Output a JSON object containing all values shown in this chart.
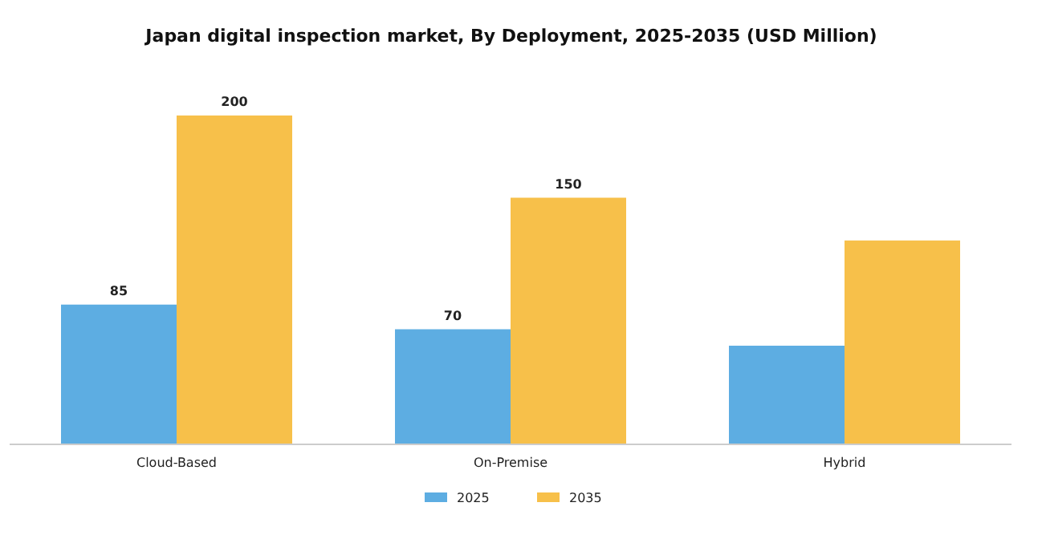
{
  "chart_data": {
    "type": "bar",
    "title": "Japan digital inspection market, By Deployment, 2025-2035 (USD Million)",
    "categories": [
      "Cloud-Based",
      "On-Premise",
      "Hybrid"
    ],
    "series": [
      {
        "name": "2025",
        "color": "#5dade2",
        "values": [
          85,
          70,
          60
        ],
        "value_labels": [
          "85",
          "70",
          null
        ]
      },
      {
        "name": "2035",
        "color": "#f7c04a",
        "values": [
          200,
          150,
          124
        ],
        "value_labels": [
          "200",
          "150",
          null
        ]
      }
    ],
    "legend": "bottom",
    "grid": false
  }
}
